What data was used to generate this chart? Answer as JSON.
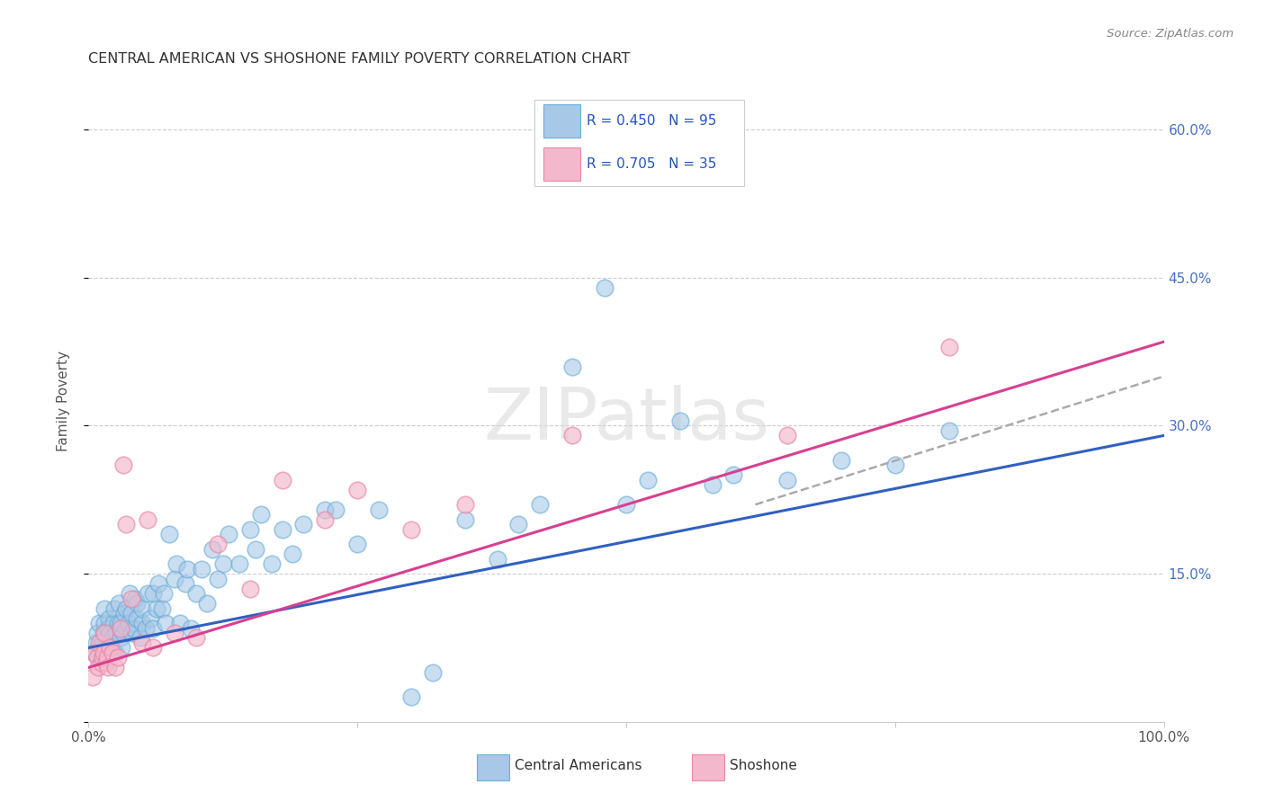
{
  "title": "CENTRAL AMERICAN VS SHOSHONE FAMILY POVERTY CORRELATION CHART",
  "source": "Source: ZipAtlas.com",
  "ylabel": "Family Poverty",
  "watermark": "ZIPatlas",
  "legend_labels": [
    "Central Americans",
    "Shoshone"
  ],
  "legend_r_values": [
    "R = 0.450",
    "R = 0.705"
  ],
  "legend_n_values": [
    "N = 95",
    "N = 35"
  ],
  "blue_color": "#a8c8e8",
  "blue_edge_color": "#6baed6",
  "pink_color": "#f4b8cc",
  "pink_edge_color": "#e888a8",
  "blue_line_color": "#3060c0",
  "pink_line_color": "#d84090",
  "dashed_line_color": "#aaaaaa",
  "background_color": "#ffffff",
  "grid_color": "#cccccc",
  "xlim": [
    0,
    1.0
  ],
  "ylim": [
    0,
    0.65
  ],
  "ytick_right_labels": [
    "",
    "15.0%",
    "30.0%",
    "45.0%",
    "60.0%"
  ],
  "ytick_positions": [
    0.0,
    0.15,
    0.3,
    0.45,
    0.6
  ],
  "blue_r": 0.45,
  "blue_n": 95,
  "pink_r": 0.705,
  "pink_n": 35,
  "blue_scatter_x": [
    0.005,
    0.007,
    0.008,
    0.01,
    0.01,
    0.012,
    0.013,
    0.014,
    0.015,
    0.015,
    0.016,
    0.017,
    0.018,
    0.019,
    0.02,
    0.02,
    0.021,
    0.022,
    0.023,
    0.024,
    0.025,
    0.026,
    0.027,
    0.028,
    0.03,
    0.03,
    0.031,
    0.032,
    0.033,
    0.035,
    0.035,
    0.037,
    0.038,
    0.04,
    0.04,
    0.042,
    0.043,
    0.045,
    0.045,
    0.048,
    0.05,
    0.05,
    0.053,
    0.055,
    0.057,
    0.06,
    0.06,
    0.063,
    0.065,
    0.068,
    0.07,
    0.072,
    0.075,
    0.08,
    0.082,
    0.085,
    0.09,
    0.092,
    0.095,
    0.1,
    0.105,
    0.11,
    0.115,
    0.12,
    0.125,
    0.13,
    0.14,
    0.15,
    0.155,
    0.16,
    0.17,
    0.18,
    0.19,
    0.2,
    0.22,
    0.23,
    0.25,
    0.27,
    0.3,
    0.32,
    0.35,
    0.38,
    0.4,
    0.42,
    0.45,
    0.48,
    0.5,
    0.52,
    0.55,
    0.58,
    0.6,
    0.65,
    0.7,
    0.75,
    0.8
  ],
  "blue_scatter_y": [
    0.07,
    0.08,
    0.09,
    0.1,
    0.075,
    0.065,
    0.08,
    0.09,
    0.1,
    0.115,
    0.07,
    0.085,
    0.095,
    0.105,
    0.08,
    0.09,
    0.075,
    0.085,
    0.1,
    0.115,
    0.07,
    0.09,
    0.1,
    0.12,
    0.085,
    0.1,
    0.075,
    0.09,
    0.11,
    0.095,
    0.115,
    0.1,
    0.13,
    0.09,
    0.11,
    0.095,
    0.125,
    0.105,
    0.12,
    0.085,
    0.1,
    0.115,
    0.095,
    0.13,
    0.105,
    0.095,
    0.13,
    0.115,
    0.14,
    0.115,
    0.13,
    0.1,
    0.19,
    0.145,
    0.16,
    0.1,
    0.14,
    0.155,
    0.095,
    0.13,
    0.155,
    0.12,
    0.175,
    0.145,
    0.16,
    0.19,
    0.16,
    0.195,
    0.175,
    0.21,
    0.16,
    0.195,
    0.17,
    0.2,
    0.215,
    0.215,
    0.18,
    0.215,
    0.025,
    0.05,
    0.205,
    0.165,
    0.2,
    0.22,
    0.36,
    0.44,
    0.22,
    0.245,
    0.305,
    0.24,
    0.25,
    0.245,
    0.265,
    0.26,
    0.295
  ],
  "pink_scatter_x": [
    0.004,
    0.006,
    0.008,
    0.009,
    0.01,
    0.012,
    0.013,
    0.014,
    0.015,
    0.016,
    0.017,
    0.018,
    0.02,
    0.022,
    0.025,
    0.027,
    0.03,
    0.032,
    0.035,
    0.04,
    0.05,
    0.055,
    0.06,
    0.08,
    0.1,
    0.12,
    0.15,
    0.18,
    0.22,
    0.25,
    0.3,
    0.35,
    0.45,
    0.65,
    0.8
  ],
  "pink_scatter_y": [
    0.045,
    0.07,
    0.065,
    0.055,
    0.08,
    0.06,
    0.065,
    0.07,
    0.09,
    0.06,
    0.065,
    0.055,
    0.075,
    0.07,
    0.055,
    0.065,
    0.095,
    0.26,
    0.2,
    0.125,
    0.08,
    0.205,
    0.075,
    0.09,
    0.085,
    0.18,
    0.135,
    0.245,
    0.205,
    0.235,
    0.195,
    0.22,
    0.29,
    0.29,
    0.38
  ],
  "blue_trend_x": [
    0.0,
    1.0
  ],
  "blue_trend_y": [
    0.075,
    0.29
  ],
  "pink_trend_x": [
    0.0,
    1.0
  ],
  "pink_trend_y": [
    0.055,
    0.385
  ],
  "dashed_trend_x": [
    0.62,
    1.0
  ],
  "dashed_trend_y": [
    0.22,
    0.35
  ]
}
